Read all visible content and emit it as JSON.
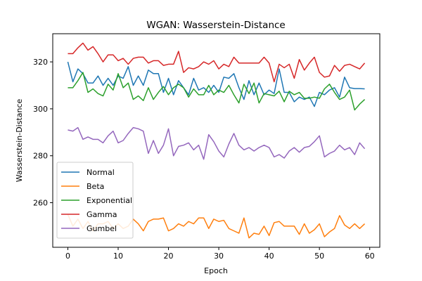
{
  "chart_data": {
    "type": "line",
    "title": "WGAN: Wasserstein-Distance",
    "xlabel": "Epoch",
    "ylabel": "Wasserstein-Distance",
    "xlim": [
      -3,
      62
    ],
    "ylim": [
      241,
      332
    ],
    "xticks": [
      0,
      10,
      20,
      30,
      40,
      50,
      60
    ],
    "yticks": [
      260,
      280,
      300,
      320
    ],
    "legend_position": "lower-left",
    "grid": false,
    "x": [
      0,
      1,
      2,
      3,
      4,
      5,
      6,
      7,
      8,
      9,
      10,
      11,
      12,
      13,
      14,
      15,
      16,
      17,
      18,
      19,
      20,
      21,
      22,
      23,
      24,
      25,
      26,
      27,
      28,
      29,
      30,
      31,
      32,
      33,
      34,
      35,
      36,
      37,
      38,
      39,
      40,
      41,
      42,
      43,
      44,
      45,
      46,
      47,
      48,
      49,
      50,
      51,
      52,
      53,
      54,
      55,
      56,
      57,
      58,
      59
    ],
    "series": [
      {
        "name": "Normal",
        "color": "#1f77b4",
        "values": [
          320,
          311.5,
          317,
          315,
          311,
          311,
          314,
          310,
          313,
          310,
          314,
          313,
          318,
          310,
          314,
          310,
          316.5,
          315,
          315,
          307,
          313,
          306,
          312,
          309,
          306,
          313,
          308,
          309,
          307,
          310,
          307,
          313.5,
          313,
          315,
          309,
          304,
          312,
          306,
          311,
          306,
          308,
          306.5,
          317,
          307,
          307,
          303,
          305,
          304,
          305,
          301,
          307,
          306,
          308,
          309,
          305,
          313.5,
          309,
          308.6,
          308.6,
          308.5
        ]
      },
      {
        "name": "Beta",
        "color": "#ff7f0e",
        "values": [
          255,
          250,
          253,
          249,
          252,
          248,
          251,
          251,
          252,
          249,
          251,
          249,
          250,
          253,
          251,
          248,
          252,
          253,
          253,
          253.5,
          248,
          249,
          251,
          250,
          252,
          251,
          253.5,
          253.5,
          249,
          253,
          252,
          252.5,
          249,
          248,
          247,
          253.5,
          245,
          247,
          246.5,
          250,
          246,
          251.5,
          252,
          250,
          250,
          250,
          246.5,
          251,
          247,
          248.5,
          251,
          245.5,
          247.5,
          249,
          254.5,
          250.5,
          249,
          251,
          249,
          251
        ]
      },
      {
        "name": "Exponential",
        "color": "#2ca02c",
        "values": [
          309,
          309,
          312,
          315.5,
          307,
          308.5,
          306.5,
          305.5,
          310.5,
          308,
          315,
          309,
          311,
          304,
          305.5,
          303.5,
          309,
          304,
          307,
          309.5,
          306,
          309,
          310.5,
          309,
          305,
          308.5,
          306,
          306,
          310,
          306,
          308,
          307,
          310,
          306,
          302.5,
          310.5,
          306.5,
          311,
          302.5,
          306.5,
          306,
          305.5,
          307.5,
          303,
          307.5,
          306,
          307,
          304.5,
          304.5,
          305,
          304.5,
          308.5,
          310.5,
          307,
          304,
          305,
          308,
          299.5,
          302,
          304
        ]
      },
      {
        "name": "Gamma",
        "color": "#d62728",
        "values": [
          323.5,
          323.5,
          326,
          328,
          325,
          326.5,
          323.5,
          320,
          323,
          323,
          320.5,
          321.5,
          319,
          321.5,
          322,
          322,
          319.5,
          320.5,
          320.5,
          318.5,
          319,
          319,
          324.5,
          315.5,
          317.5,
          317,
          318,
          320,
          319,
          320.5,
          317,
          319,
          318,
          322,
          319.5,
          319.5,
          319.5,
          319.5,
          319.5,
          322,
          319.5,
          311.5,
          319,
          317.5,
          319,
          313,
          321,
          316.5,
          319.5,
          322,
          315.5,
          313.5,
          314,
          318.5,
          316,
          318.5,
          319,
          318,
          317,
          319.5
        ]
      },
      {
        "name": "Gumbel",
        "color": "#9467bd",
        "values": [
          291,
          290.5,
          292,
          287,
          288,
          287,
          287,
          285.5,
          288.5,
          290.5,
          285.5,
          286.5,
          289.5,
          292,
          291.5,
          290.5,
          281,
          286.5,
          281,
          284.5,
          291.5,
          280,
          284,
          284.5,
          285.5,
          282.5,
          284.5,
          278.5,
          289,
          286,
          282,
          279.5,
          285,
          289.5,
          284.5,
          282.5,
          283.5,
          282,
          283.5,
          284.5,
          283.5,
          279.5,
          280.5,
          279,
          282,
          283.5,
          281.5,
          283.5,
          284,
          286,
          288.5,
          279.5,
          281,
          282,
          284.5,
          282.5,
          283.5,
          280.5,
          285.5,
          283
        ]
      }
    ]
  }
}
